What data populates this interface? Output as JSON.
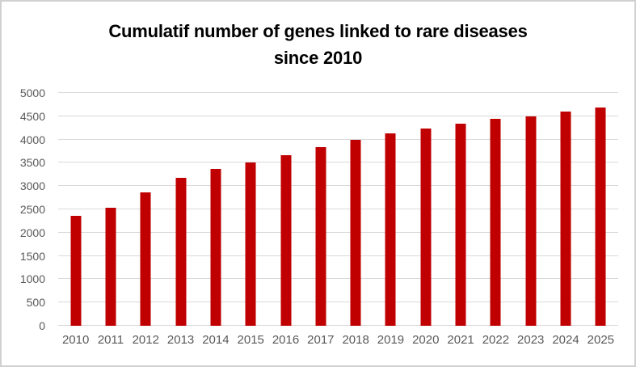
{
  "window": {
    "background": "#ffffff",
    "frame_border_color": "#d0d0d0"
  },
  "chart_data": {
    "type": "bar",
    "title": "Cumulatif number of genes linked to rare diseases since 2010",
    "title_lines": [
      "Cumulatif number of genes linked to rare diseases",
      "since 2010"
    ],
    "categories": [
      "2010",
      "2011",
      "2012",
      "2013",
      "2014",
      "2015",
      "2016",
      "2017",
      "2018",
      "2019",
      "2020",
      "2021",
      "2022",
      "2023",
      "2024",
      "2025"
    ],
    "values": [
      2360,
      2540,
      2860,
      3170,
      3360,
      3510,
      3670,
      3830,
      4000,
      4140,
      4240,
      4340,
      4450,
      4490,
      4600,
      4690
    ],
    "xlabel": "",
    "ylabel": "",
    "ylim": [
      0,
      5000
    ],
    "yticks": [
      0,
      500,
      1000,
      1500,
      2000,
      2500,
      3000,
      3500,
      4000,
      4500,
      5000
    ],
    "grid": true,
    "legend_position": "none",
    "bar_color": "#c00000",
    "gridline_color": "#d9d9d9",
    "axis_line_color": "#d9d9d9",
    "tick_label_color": "#595959",
    "title_color": "#000000"
  }
}
